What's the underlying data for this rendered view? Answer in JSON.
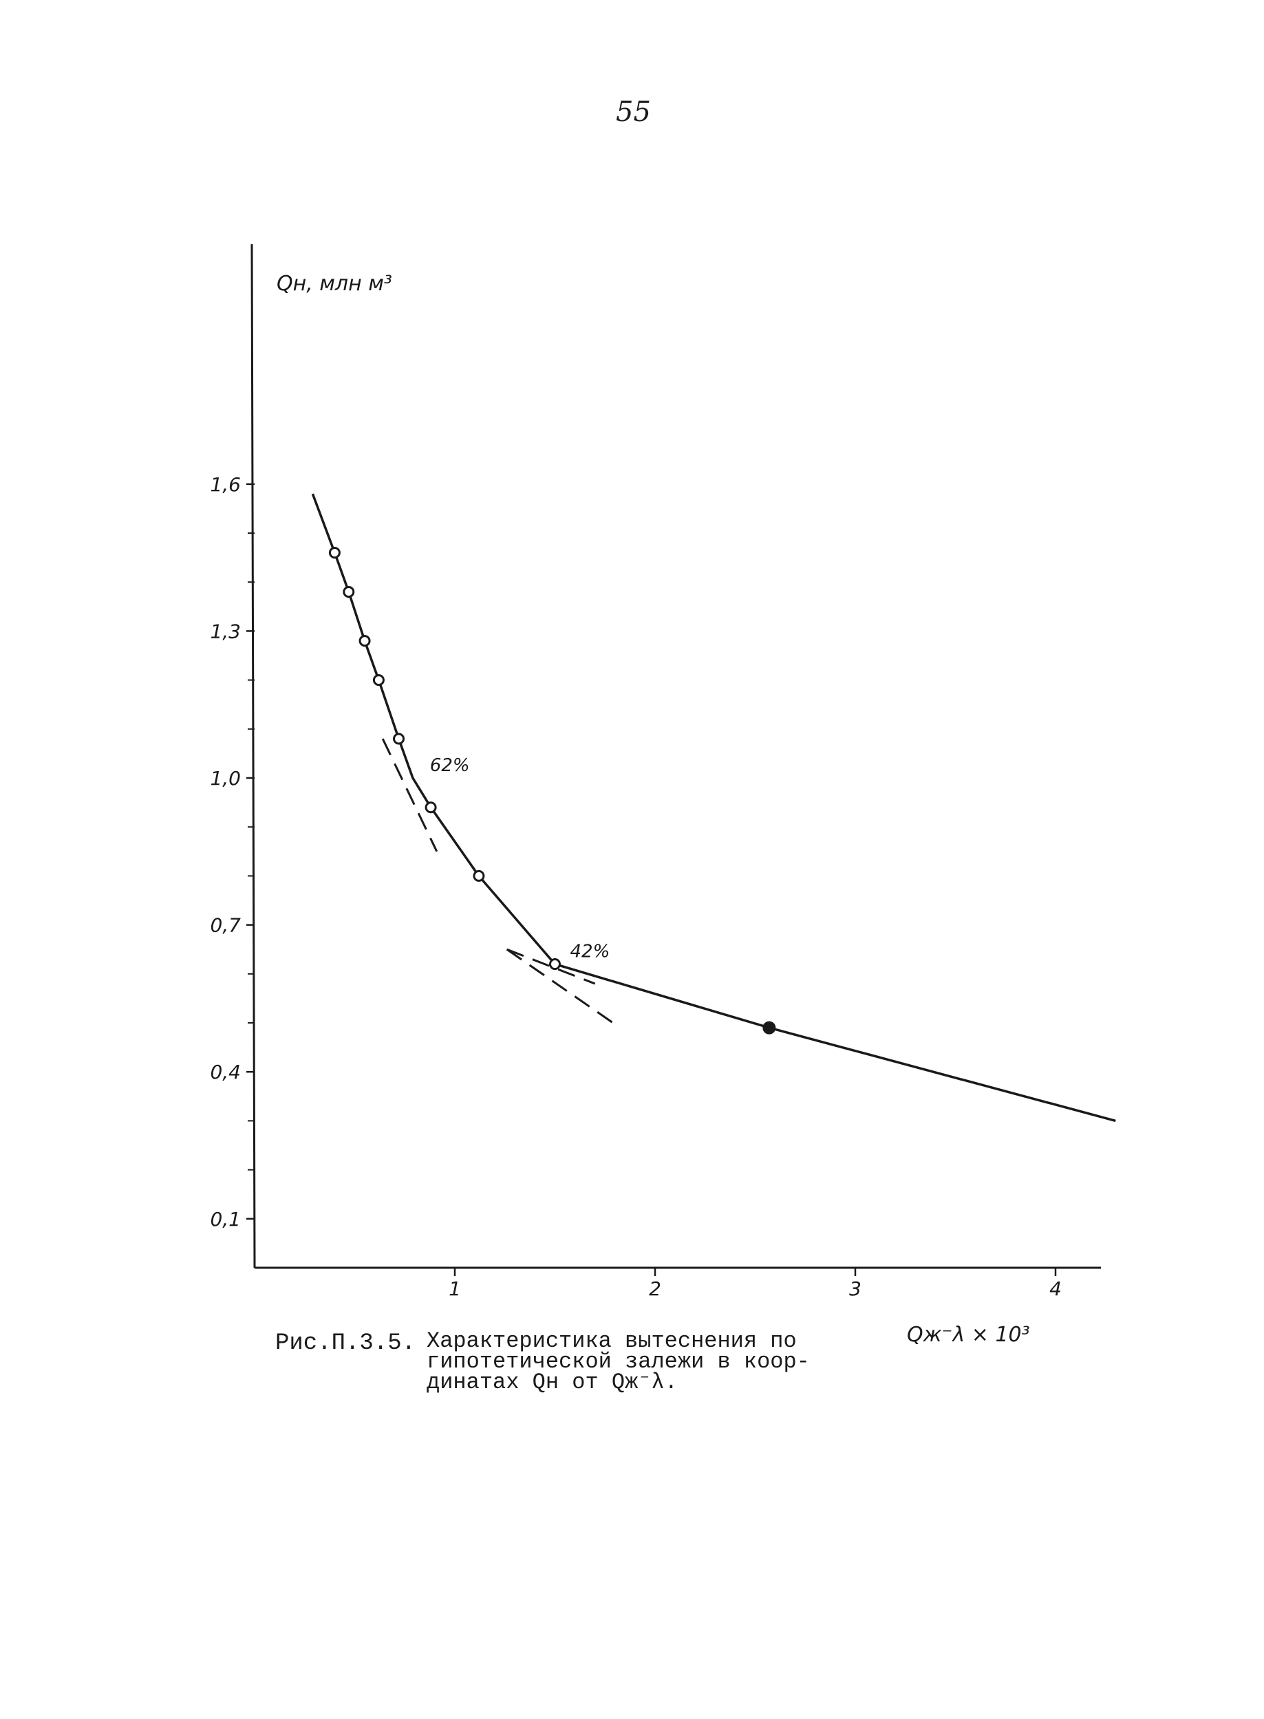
{
  "page_number": "55",
  "caption": {
    "figure_number": "Рис.П.3.5.",
    "lines": [
      "Характеристика вытеснения по",
      "гипотетической залежи в коор-",
      "динатах Qн от Qж⁻λ."
    ]
  },
  "chart_data": {
    "type": "line",
    "ylabel": "Qн, млн м³",
    "xlabel": "Qж⁻λ × 10³",
    "xlim": [
      0,
      4.3
    ],
    "ylim": [
      0,
      2.05
    ],
    "y_ticks": [
      {
        "value": 0.1,
        "label": "0,1"
      },
      {
        "value": 0.4,
        "label": "0,4"
      },
      {
        "value": 0.7,
        "label": "0,7"
      },
      {
        "value": 1.0,
        "label": "1,0"
      },
      {
        "value": 1.3,
        "label": "1,3"
      },
      {
        "value": 1.6,
        "label": "1,6"
      }
    ],
    "y_minor_ticks": [
      0.2,
      0.3,
      0.5,
      0.6,
      0.8,
      0.9,
      1.1,
      1.2,
      1.4,
      1.5
    ],
    "x_ticks": [
      {
        "value": 1,
        "label": "1"
      },
      {
        "value": 2,
        "label": "2"
      },
      {
        "value": 3,
        "label": "3"
      },
      {
        "value": 4,
        "label": "4"
      }
    ],
    "grid": false,
    "series": [
      {
        "curve": [
          [
            0.29,
            1.58
          ],
          [
            0.4,
            1.46
          ],
          [
            0.47,
            1.38
          ],
          [
            0.55,
            1.28
          ],
          [
            0.62,
            1.2
          ],
          [
            0.72,
            1.08
          ],
          [
            0.79,
            1.0
          ],
          [
            0.88,
            0.94
          ],
          [
            1.12,
            0.8
          ],
          [
            1.5,
            0.62
          ],
          [
            2.57,
            0.49
          ],
          [
            4.3,
            0.3
          ]
        ],
        "points": [
          {
            "x": 0.4,
            "y": 1.46,
            "marker": "open"
          },
          {
            "x": 0.47,
            "y": 1.38,
            "marker": "open"
          },
          {
            "x": 0.55,
            "y": 1.28,
            "marker": "open"
          },
          {
            "x": 0.62,
            "y": 1.2,
            "marker": "open"
          },
          {
            "x": 0.72,
            "y": 1.08,
            "marker": "open"
          },
          {
            "x": 0.88,
            "y": 0.94,
            "marker": "open"
          },
          {
            "x": 1.12,
            "y": 0.8,
            "marker": "open"
          },
          {
            "x": 1.5,
            "y": 0.62,
            "marker": "open"
          },
          {
            "x": 2.57,
            "y": 0.49,
            "marker": "filled"
          }
        ]
      }
    ],
    "tangents": [
      {
        "from": [
          0.64,
          1.08
        ],
        "to": [
          0.91,
          0.85
        ]
      },
      {
        "from": [
          1.26,
          0.65
        ],
        "to": [
          1.79,
          0.5
        ]
      },
      {
        "from": [
          1.26,
          0.65
        ],
        "to": [
          1.7,
          0.58
        ]
      }
    ],
    "annotations": [
      {
        "text": "62%",
        "x": 0.8,
        "y": 1.0
      },
      {
        "text": "42%",
        "x": 1.5,
        "y": 0.62
      }
    ]
  }
}
